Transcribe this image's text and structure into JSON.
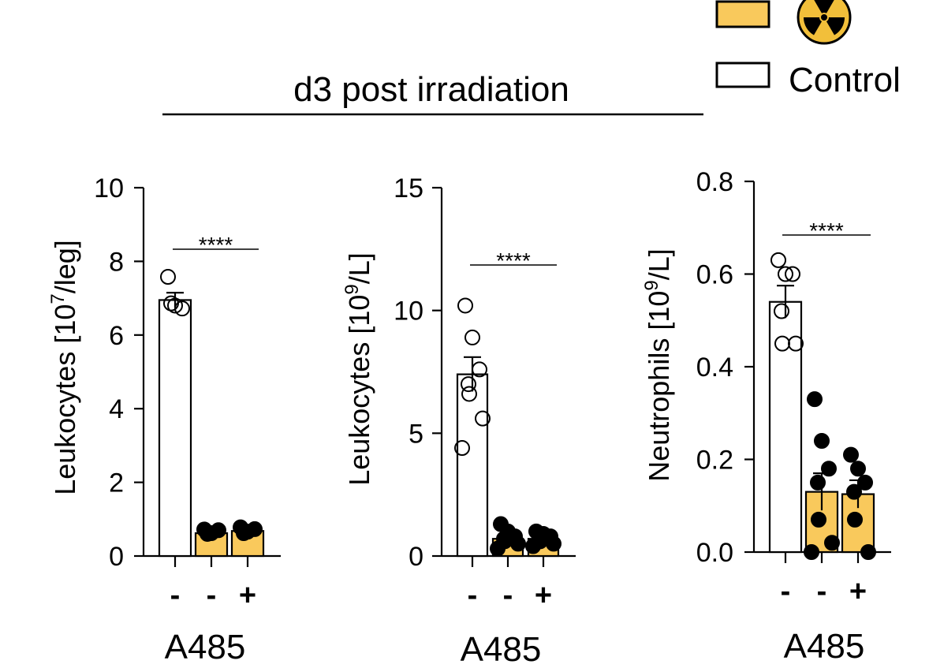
{
  "header": {
    "title": "d3 post irradiation",
    "legend": [
      {
        "label": "",
        "fill": "#F9C95C",
        "symbol": "radiation-icon"
      },
      {
        "label": "Control",
        "fill": "#FFFFFF"
      }
    ]
  },
  "colors": {
    "irradiated": "#F9C95C",
    "control": "#FFFFFF",
    "radiation_bg": "#F2BF3A",
    "ink": "#000000"
  },
  "chart_data": [
    {
      "type": "bar",
      "ylabel": "Leukocytes [10",
      "ylabel_sup": "7",
      "ylabel_tail": "/leg]",
      "ylim": [
        0,
        10
      ],
      "ticks": [
        "0",
        "2",
        "4",
        "6",
        "8",
        "10"
      ],
      "tick_values": [
        0,
        2,
        4,
        6,
        8,
        10
      ],
      "categories": [
        "-",
        "-",
        "+"
      ],
      "xlabel": "A485",
      "means": [
        6.95,
        0.62,
        0.68
      ],
      "sem": [
        0.2,
        0.04,
        0.04
      ],
      "groups": [
        "Control",
        "Irradiated",
        "Irradiated"
      ],
      "points": [
        [
          7.58,
          6.8,
          6.72,
          6.86
        ],
        [
          0.72,
          0.62,
          0.7,
          0.6
        ],
        [
          0.78,
          0.66,
          0.73,
          0.62
        ]
      ],
      "significance": "****"
    },
    {
      "type": "bar",
      "ylabel": "Leukocytes [10",
      "ylabel_sup": "9",
      "ylabel_tail": "/L]",
      "ylim": [
        0,
        15
      ],
      "ticks": [
        "0",
        "5",
        "10",
        "15"
      ],
      "tick_values": [
        0,
        5,
        10,
        15
      ],
      "categories": [
        "-",
        "-",
        "+"
      ],
      "xlabel": "A485",
      "means": [
        7.4,
        0.7,
        0.7
      ],
      "sem": [
        0.7,
        0.12,
        0.1
      ],
      "groups": [
        "Control",
        "Irradiated",
        "Irradiated"
      ],
      "points": [
        [
          10.2,
          8.9,
          7.6,
          7.0,
          6.6,
          5.6,
          4.4
        ],
        [
          1.3,
          1.0,
          0.8,
          0.7,
          0.6,
          0.5,
          0.3
        ],
        [
          1.0,
          0.9,
          0.8,
          0.7,
          0.6,
          0.5,
          0.4
        ]
      ],
      "significance": "****"
    },
    {
      "type": "bar",
      "ylabel": "Neutrophils [10",
      "ylabel_sup": "9",
      "ylabel_tail": "/L]",
      "ylim": [
        0,
        0.8
      ],
      "ticks": [
        "0.0",
        "0.2",
        "0.4",
        "0.6",
        "0.8"
      ],
      "tick_values": [
        0,
        0.2,
        0.4,
        0.6,
        0.8
      ],
      "categories": [
        "-",
        "-",
        "+"
      ],
      "xlabel": "A485",
      "means": [
        0.54,
        0.13,
        0.125
      ],
      "sem": [
        0.035,
        0.04,
        0.03
      ],
      "groups": [
        "Control",
        "Irradiated",
        "Irradiated"
      ],
      "points": [
        [
          0.63,
          0.6,
          0.6,
          0.52,
          0.45,
          0.45
        ],
        [
          0.33,
          0.24,
          0.18,
          0.15,
          0.07,
          0.02,
          0.0
        ],
        [
          0.21,
          0.18,
          0.15,
          0.13,
          0.07,
          0.0
        ]
      ],
      "significance": "****"
    }
  ]
}
